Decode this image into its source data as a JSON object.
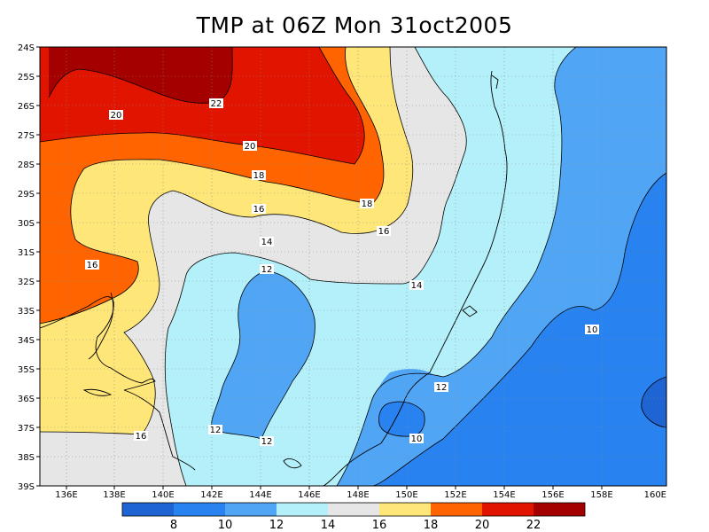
{
  "title": "TMP at 06Z Mon 31oct2005",
  "colors": {
    "c8": "#1e64d2",
    "c10": "#2882f0",
    "c12": "#50a5f5",
    "c14": "#b4f0fa",
    "c16": "#e6e6e6",
    "c18": "#ffe678",
    "c20": "#ff6400",
    "c22": "#e11400",
    "c24": "#a50000"
  },
  "axes": {
    "lon_labels": [
      "136E",
      "138E",
      "140E",
      "142E",
      "144E",
      "146E",
      "148E",
      "150E",
      "152E",
      "154E",
      "156E",
      "158E",
      "160E"
    ],
    "lat_labels": [
      "24S",
      "25S",
      "26S",
      "27S",
      "28S",
      "29S",
      "30S",
      "31S",
      "32S",
      "33S",
      "34S",
      "35S",
      "36S",
      "37S",
      "38S",
      "39S"
    ]
  },
  "contour_labels": [
    {
      "text": "22"
    },
    {
      "text": "20"
    },
    {
      "text": "20"
    },
    {
      "text": "18"
    },
    {
      "text": "18"
    },
    {
      "text": "16"
    },
    {
      "text": "16"
    },
    {
      "text": "16"
    },
    {
      "text": "16"
    },
    {
      "text": "14"
    },
    {
      "text": "14"
    },
    {
      "text": "12"
    },
    {
      "text": "12"
    },
    {
      "text": "12"
    },
    {
      "text": "12"
    },
    {
      "text": "10"
    },
    {
      "text": "10"
    }
  ],
  "colorbar": {
    "labels": [
      "8",
      "10",
      "12",
      "14",
      "16",
      "18",
      "20",
      "22"
    ]
  }
}
